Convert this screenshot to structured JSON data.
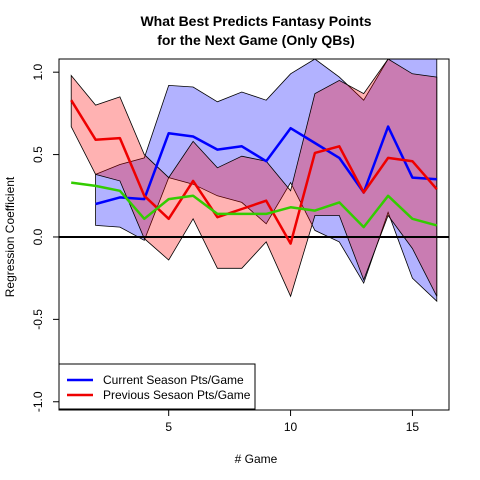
{
  "chart_data": {
    "type": "line",
    "title": [
      "What Best Predicts Fantasy Points",
      "for the Next Game (Only QBs)"
    ],
    "xlabel": "# Game",
    "ylabel": "Regression Coefficient",
    "xlim": [
      0.5,
      16.5
    ],
    "ylim": [
      -1.05,
      1.08
    ],
    "x_ticks": [
      5,
      10,
      15
    ],
    "x_tick_labels": [
      "5",
      "10",
      "15"
    ],
    "y_ticks": [
      -1.0,
      -0.5,
      0.0,
      0.5,
      1.0
    ],
    "y_tick_labels": [
      "-1.0",
      "-0.5",
      "0.0",
      "0.5",
      "1.0"
    ],
    "zero_line": 0,
    "legend_position": "bottom-left",
    "series": [
      {
        "name": "Current Season Pts/Game",
        "color": "#0000ff",
        "band_color": "rgba(0,0,255,0.30)",
        "x": [
          2,
          3,
          4,
          5,
          6,
          7,
          8,
          9,
          10,
          11,
          12,
          13,
          14,
          15,
          16
        ],
        "values": [
          0.2,
          0.24,
          0.23,
          0.63,
          0.61,
          0.53,
          0.55,
          0.46,
          0.66,
          0.57,
          0.48,
          0.27,
          0.67,
          0.36,
          0.35
        ],
        "upper": [
          0.38,
          0.44,
          0.48,
          0.92,
          0.91,
          0.82,
          0.88,
          0.83,
          0.99,
          1.08,
          0.97,
          0.83,
          1.08,
          1.08,
          1.08
        ],
        "lower": [
          0.07,
          0.06,
          -0.02,
          0.36,
          0.32,
          0.25,
          0.21,
          0.08,
          0.33,
          0.04,
          -0.03,
          -0.28,
          0.15,
          -0.25,
          -0.39
        ]
      },
      {
        "name": "Previous Sesaon Pts/Game",
        "color": "#ee0000",
        "band_color": "rgba(255,0,0,0.30)",
        "x": [
          1,
          2,
          3,
          4,
          5,
          6,
          7,
          8,
          9,
          10,
          11,
          12,
          13,
          14,
          15,
          16
        ],
        "values": [
          0.83,
          0.59,
          0.6,
          0.25,
          0.11,
          0.34,
          0.12,
          0.17,
          0.22,
          -0.04,
          0.51,
          0.55,
          0.27,
          0.48,
          0.46,
          0.29
        ],
        "upper": [
          0.98,
          0.8,
          0.85,
          0.5,
          0.36,
          0.58,
          0.42,
          0.49,
          0.46,
          0.28,
          0.87,
          0.95,
          0.87,
          1.08,
          0.99,
          0.97
        ],
        "lower": [
          0.67,
          0.38,
          0.34,
          -0.01,
          -0.14,
          0.11,
          -0.19,
          -0.19,
          -0.03,
          -0.36,
          0.13,
          0.13,
          -0.26,
          0.13,
          -0.07,
          -0.36
        ]
      },
      {
        "color": "#33cc00",
        "x": [
          1,
          2,
          3,
          4,
          5,
          6,
          7,
          8,
          9,
          10,
          11,
          12,
          13,
          14,
          15,
          16
        ],
        "values": [
          0.33,
          0.31,
          0.28,
          0.11,
          0.23,
          0.25,
          0.14,
          0.14,
          0.14,
          0.18,
          0.16,
          0.21,
          0.06,
          0.25,
          0.11,
          0.07
        ]
      }
    ]
  }
}
